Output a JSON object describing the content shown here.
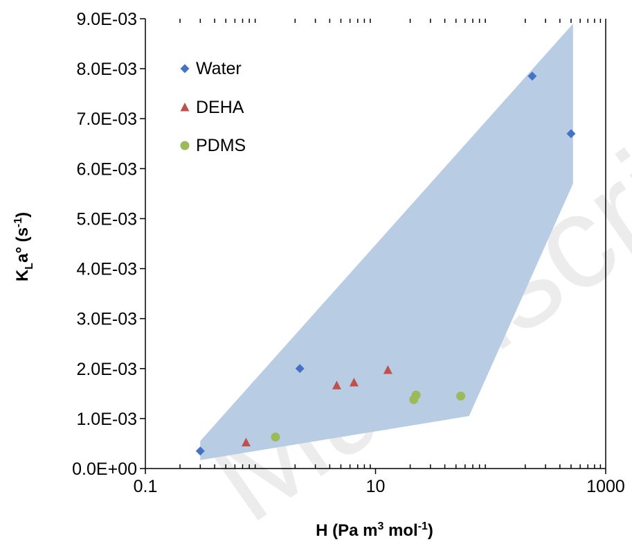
{
  "chart_data": {
    "type": "scatter",
    "x_scale": "log",
    "xlim": [
      0.1,
      1000
    ],
    "ylim": [
      0,
      0.009
    ],
    "x_ticks": [
      0.1,
      10,
      1000
    ],
    "x_tick_labels": [
      "0.1",
      "10",
      "1000"
    ],
    "y_ticks": [
      0,
      0.001,
      0.002,
      0.003,
      0.004,
      0.005,
      0.006,
      0.007,
      0.008,
      0.009
    ],
    "y_tick_labels": [
      "0.0E+00",
      "1.0E-03",
      "2.0E-03",
      "3.0E-03",
      "4.0E-03",
      "5.0E-03",
      "6.0E-03",
      "7.0E-03",
      "8.0E-03",
      "9.0E-03"
    ],
    "xlabel": {
      "main": "H (Pa m",
      "sup1": "3",
      "mid": " mol",
      "sup2": "-1",
      "end": ")"
    },
    "ylabel": {
      "k": "K",
      "sub": "L",
      "main": "a° (s",
      "sup": "-1",
      "end": ")"
    },
    "grid": false,
    "legend_position": "top-left",
    "series": [
      {
        "name": "Water",
        "marker": "diamond",
        "color": "#4472C4",
        "points": [
          [
            0.3,
            0.00035
          ],
          [
            2.2,
            0.002
          ],
          [
            230,
            0.00785
          ],
          [
            500,
            0.0067
          ]
        ]
      },
      {
        "name": "DEHA",
        "marker": "triangle",
        "color": "#C0504D",
        "points": [
          [
            0.75,
            0.00052
          ],
          [
            4.6,
            0.00166
          ],
          [
            6.5,
            0.00172
          ],
          [
            12.8,
            0.00197
          ]
        ]
      },
      {
        "name": "PDMS",
        "marker": "circle",
        "color": "#9BBB59",
        "points": [
          [
            1.35,
            0.00063
          ],
          [
            21.5,
            0.00138
          ],
          [
            22.5,
            0.00147
          ],
          [
            55,
            0.00145
          ]
        ]
      }
    ],
    "envelope": {
      "color": "#B8CCE4",
      "points": [
        [
          0.3,
          0.00017
        ],
        [
          0.3,
          0.00055
        ],
        [
          520,
          0.0089
        ],
        [
          520,
          0.0057
        ],
        [
          65,
          0.00105
        ]
      ]
    }
  },
  "watermark": "Manuscript"
}
